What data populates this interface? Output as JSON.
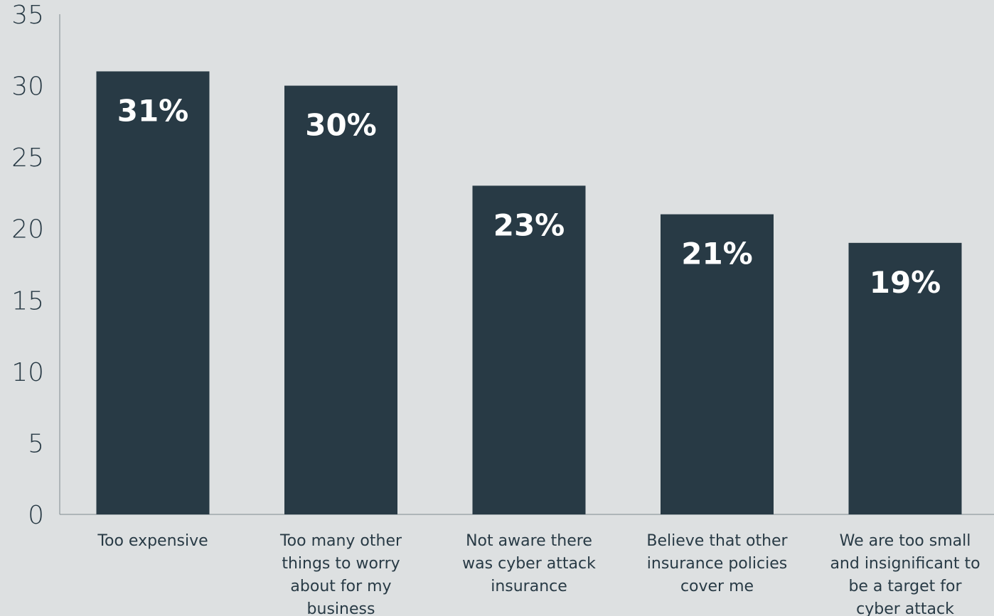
{
  "chart_data": {
    "type": "bar",
    "categories": [
      [
        "Too expensive"
      ],
      [
        "Too many other",
        "things to worry",
        "about for my",
        "business"
      ],
      [
        "Not aware there",
        "was cyber attack",
        "insurance"
      ],
      [
        "Believe that other",
        "insurance policies",
        "cover me"
      ],
      [
        "We are too small",
        "and insignificant to",
        "be a target for",
        "cyber attack"
      ]
    ],
    "values": [
      31,
      30,
      23,
      21,
      19
    ],
    "data_labels": [
      "31%",
      "30%",
      "23%",
      "21%",
      "19%"
    ],
    "ylim": [
      0,
      35
    ],
    "yticks": [
      "0",
      "5",
      "10",
      "15",
      "20",
      "25",
      "30",
      "35"
    ],
    "grid": false,
    "bar_color": "#283a45",
    "background": "#dde0e1",
    "title": "",
    "xlabel": "",
    "ylabel": ""
  }
}
